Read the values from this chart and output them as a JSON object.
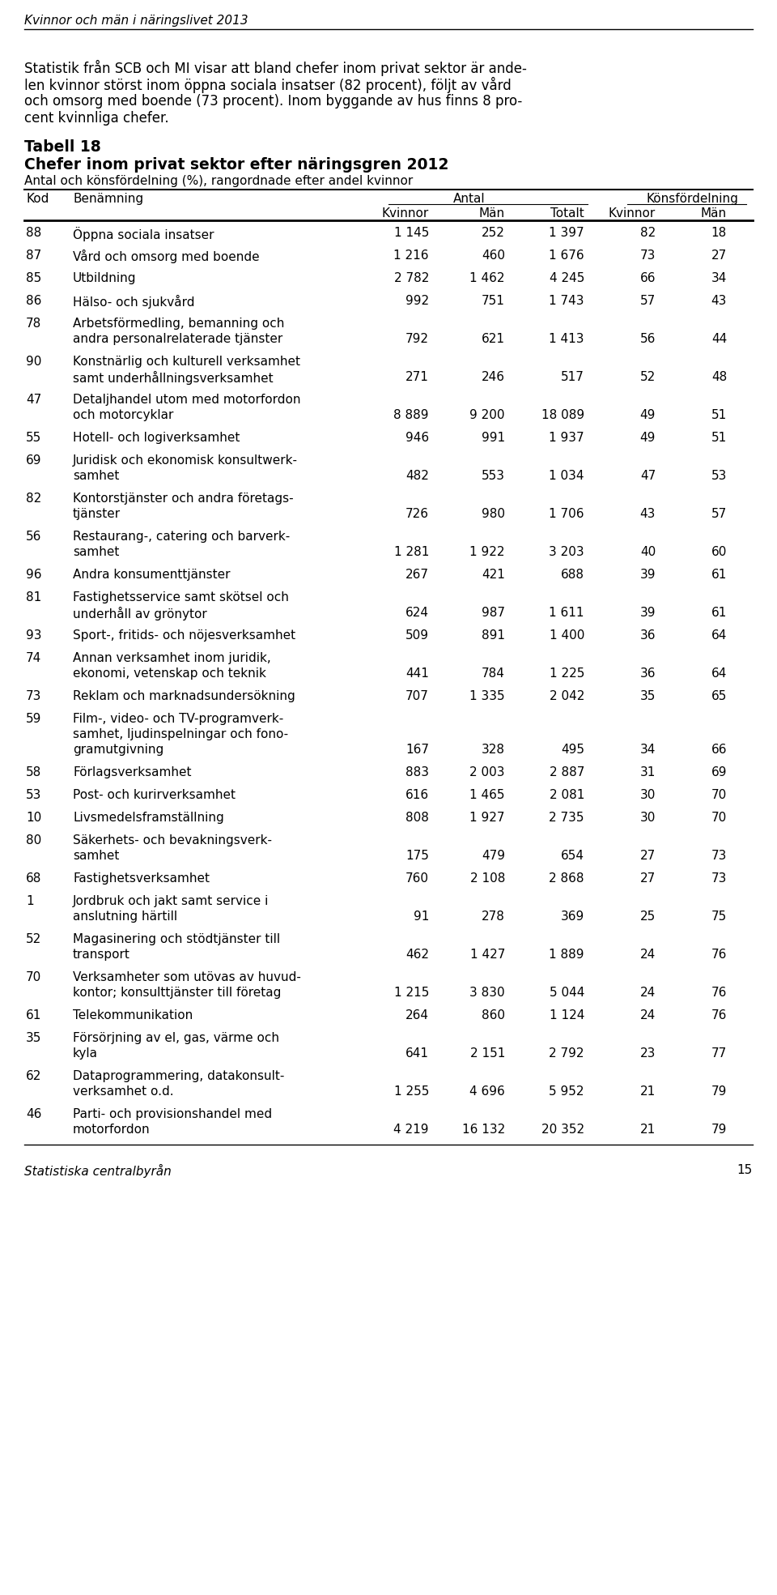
{
  "header_title": "Kvinnor och män i näringslivet 2013",
  "intro_lines": [
    "Statistik från SCB och MI visar att bland chefer inom privat sektor är ande-",
    "len kvinnor störst inom öppna sociala insatser (82 procent), följt av vård",
    "och omsorg med boende (73 procent). Inom byggande av hus finns 8 pro-",
    "cent kvinnliga chefer."
  ],
  "table_title1": "Tabell 18",
  "table_title2": "Chefer inom privat sektor efter näringsgren 2012",
  "table_subtitle": "Antal och könsfördelning (%), rangordnade efter andel kvinnor",
  "rows": [
    {
      "kod": "88",
      "name": [
        "Öppna sociala insatser"
      ],
      "kvinnor": "1 145",
      "man": "252",
      "totalt": "1 397",
      "kv_pct": "82",
      "man_pct": "18"
    },
    {
      "kod": "87",
      "name": [
        "Vård och omsorg med boende"
      ],
      "kvinnor": "1 216",
      "man": "460",
      "totalt": "1 676",
      "kv_pct": "73",
      "man_pct": "27"
    },
    {
      "kod": "85",
      "name": [
        "Utbildning"
      ],
      "kvinnor": "2 782",
      "man": "1 462",
      "totalt": "4 245",
      "kv_pct": "66",
      "man_pct": "34"
    },
    {
      "kod": "86",
      "name": [
        "Hälso- och sjukvård"
      ],
      "kvinnor": "992",
      "man": "751",
      "totalt": "1 743",
      "kv_pct": "57",
      "man_pct": "43"
    },
    {
      "kod": "78",
      "name": [
        "Arbetsförmedling, bemanning och",
        "andra personalrelaterade tjänster"
      ],
      "kvinnor": "792",
      "man": "621",
      "totalt": "1 413",
      "kv_pct": "56",
      "man_pct": "44"
    },
    {
      "kod": "90",
      "name": [
        "Konstnärlig och kulturell verksamhet",
        "samt underhållningsverksamhet"
      ],
      "kvinnor": "271",
      "man": "246",
      "totalt": "517",
      "kv_pct": "52",
      "man_pct": "48"
    },
    {
      "kod": "47",
      "name": [
        "Detaljhandel utom med motorfordon",
        "och motorcyklar"
      ],
      "kvinnor": "8 889",
      "man": "9 200",
      "totalt": "18 089",
      "kv_pct": "49",
      "man_pct": "51"
    },
    {
      "kod": "55",
      "name": [
        "Hotell- och logiverksamhet"
      ],
      "kvinnor": "946",
      "man": "991",
      "totalt": "1 937",
      "kv_pct": "49",
      "man_pct": "51"
    },
    {
      "kod": "69",
      "name": [
        "Juridisk och ekonomisk konsultwerk-",
        "samhet"
      ],
      "kvinnor": "482",
      "man": "553",
      "totalt": "1 034",
      "kv_pct": "47",
      "man_pct": "53"
    },
    {
      "kod": "82",
      "name": [
        "Kontorstjänster och andra företags-",
        "tjänster"
      ],
      "kvinnor": "726",
      "man": "980",
      "totalt": "1 706",
      "kv_pct": "43",
      "man_pct": "57"
    },
    {
      "kod": "56",
      "name": [
        "Restaurang-, catering och barverk-",
        "samhet"
      ],
      "kvinnor": "1 281",
      "man": "1 922",
      "totalt": "3 203",
      "kv_pct": "40",
      "man_pct": "60"
    },
    {
      "kod": "96",
      "name": [
        "Andra konsumenttjänster"
      ],
      "kvinnor": "267",
      "man": "421",
      "totalt": "688",
      "kv_pct": "39",
      "man_pct": "61"
    },
    {
      "kod": "81",
      "name": [
        "Fastighetsservice samt skötsel och",
        "underhåll av grönytor"
      ],
      "kvinnor": "624",
      "man": "987",
      "totalt": "1 611",
      "kv_pct": "39",
      "man_pct": "61"
    },
    {
      "kod": "93",
      "name": [
        "Sport-, fritids- och nöjesverksamhet"
      ],
      "kvinnor": "509",
      "man": "891",
      "totalt": "1 400",
      "kv_pct": "36",
      "man_pct": "64"
    },
    {
      "kod": "74",
      "name": [
        "Annan verksamhet inom juridik,",
        "ekonomi, vetenskap och teknik"
      ],
      "kvinnor": "441",
      "man": "784",
      "totalt": "1 225",
      "kv_pct": "36",
      "man_pct": "64"
    },
    {
      "kod": "73",
      "name": [
        "Reklam och marknadsundersökning"
      ],
      "kvinnor": "707",
      "man": "1 335",
      "totalt": "2 042",
      "kv_pct": "35",
      "man_pct": "65"
    },
    {
      "kod": "59",
      "name": [
        "Film-, video- och TV-programverk-",
        "samhet, ljudinspelningar och fono-",
        "gramutgivning"
      ],
      "kvinnor": "167",
      "man": "328",
      "totalt": "495",
      "kv_pct": "34",
      "man_pct": "66"
    },
    {
      "kod": "58",
      "name": [
        "Förlagsverksamhet"
      ],
      "kvinnor": "883",
      "man": "2 003",
      "totalt": "2 887",
      "kv_pct": "31",
      "man_pct": "69"
    },
    {
      "kod": "53",
      "name": [
        "Post- och kurirverksamhet"
      ],
      "kvinnor": "616",
      "man": "1 465",
      "totalt": "2 081",
      "kv_pct": "30",
      "man_pct": "70"
    },
    {
      "kod": "10",
      "name": [
        "Livsmedelsframställning"
      ],
      "kvinnor": "808",
      "man": "1 927",
      "totalt": "2 735",
      "kv_pct": "30",
      "man_pct": "70"
    },
    {
      "kod": "80",
      "name": [
        "Säkerhets- och bevakningsverk-",
        "samhet"
      ],
      "kvinnor": "175",
      "man": "479",
      "totalt": "654",
      "kv_pct": "27",
      "man_pct": "73"
    },
    {
      "kod": "68",
      "name": [
        "Fastighetsverksamhet"
      ],
      "kvinnor": "760",
      "man": "2 108",
      "totalt": "2 868",
      "kv_pct": "27",
      "man_pct": "73"
    },
    {
      "kod": "1",
      "name": [
        "Jordbruk och jakt samt service i",
        "anslutning härtill"
      ],
      "kvinnor": "91",
      "man": "278",
      "totalt": "369",
      "kv_pct": "25",
      "man_pct": "75"
    },
    {
      "kod": "52",
      "name": [
        "Magasinering och stödtjänster till",
        "transport"
      ],
      "kvinnor": "462",
      "man": "1 427",
      "totalt": "1 889",
      "kv_pct": "24",
      "man_pct": "76"
    },
    {
      "kod": "70",
      "name": [
        "Verksamheter som utövas av huvud-",
        "kontor; konsulttjänster till företag"
      ],
      "kvinnor": "1 215",
      "man": "3 830",
      "totalt": "5 044",
      "kv_pct": "24",
      "man_pct": "76"
    },
    {
      "kod": "61",
      "name": [
        "Telekommunikation"
      ],
      "kvinnor": "264",
      "man": "860",
      "totalt": "1 124",
      "kv_pct": "24",
      "man_pct": "76"
    },
    {
      "kod": "35",
      "name": [
        "Försörjning av el, gas, värme och",
        "kyla"
      ],
      "kvinnor": "641",
      "man": "2 151",
      "totalt": "2 792",
      "kv_pct": "23",
      "man_pct": "77"
    },
    {
      "kod": "62",
      "name": [
        "Dataprogrammering, datakonsult-",
        "verksamhet o.d."
      ],
      "kvinnor": "1 255",
      "man": "4 696",
      "totalt": "5 952",
      "kv_pct": "21",
      "man_pct": "79"
    },
    {
      "kod": "46",
      "name": [
        "Parti- och provisionshandel med",
        "motorfordon"
      ],
      "kvinnor": "4 219",
      "man": "16 132",
      "totalt": "20 352",
      "kv_pct": "21",
      "man_pct": "79"
    }
  ],
  "footer_text": "Statistiska centralbyrån",
  "footer_page": "15",
  "bg_color": "#ffffff",
  "text_color": "#000000",
  "line_color": "#000000"
}
